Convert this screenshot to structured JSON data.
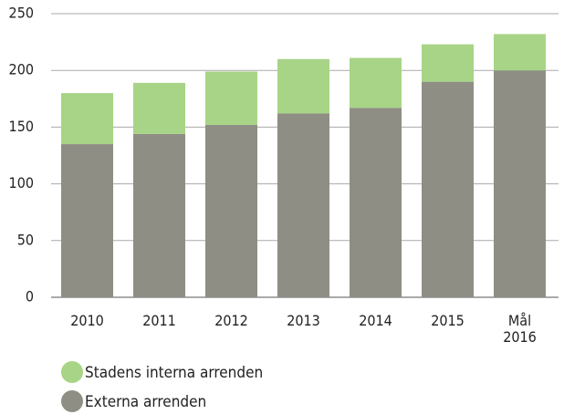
{
  "chart_data": {
    "type": "stacked_bar",
    "categories": [
      "2010",
      "2011",
      "2012",
      "2013",
      "2014",
      "2015",
      "Mål 2016"
    ],
    "series": [
      {
        "name": "Stadens interna arrenden",
        "color": "#a8d487",
        "values": [
          45,
          45,
          47,
          48,
          44,
          33,
          32
        ]
      },
      {
        "name": "Externa arrenden",
        "color": "#8e8e84",
        "values": [
          135,
          144,
          152,
          162,
          167,
          190,
          200
        ]
      }
    ],
    "ylim": [
      0,
      250
    ],
    "yticks": [
      0,
      50,
      100,
      150,
      200,
      250
    ],
    "grid": true
  }
}
